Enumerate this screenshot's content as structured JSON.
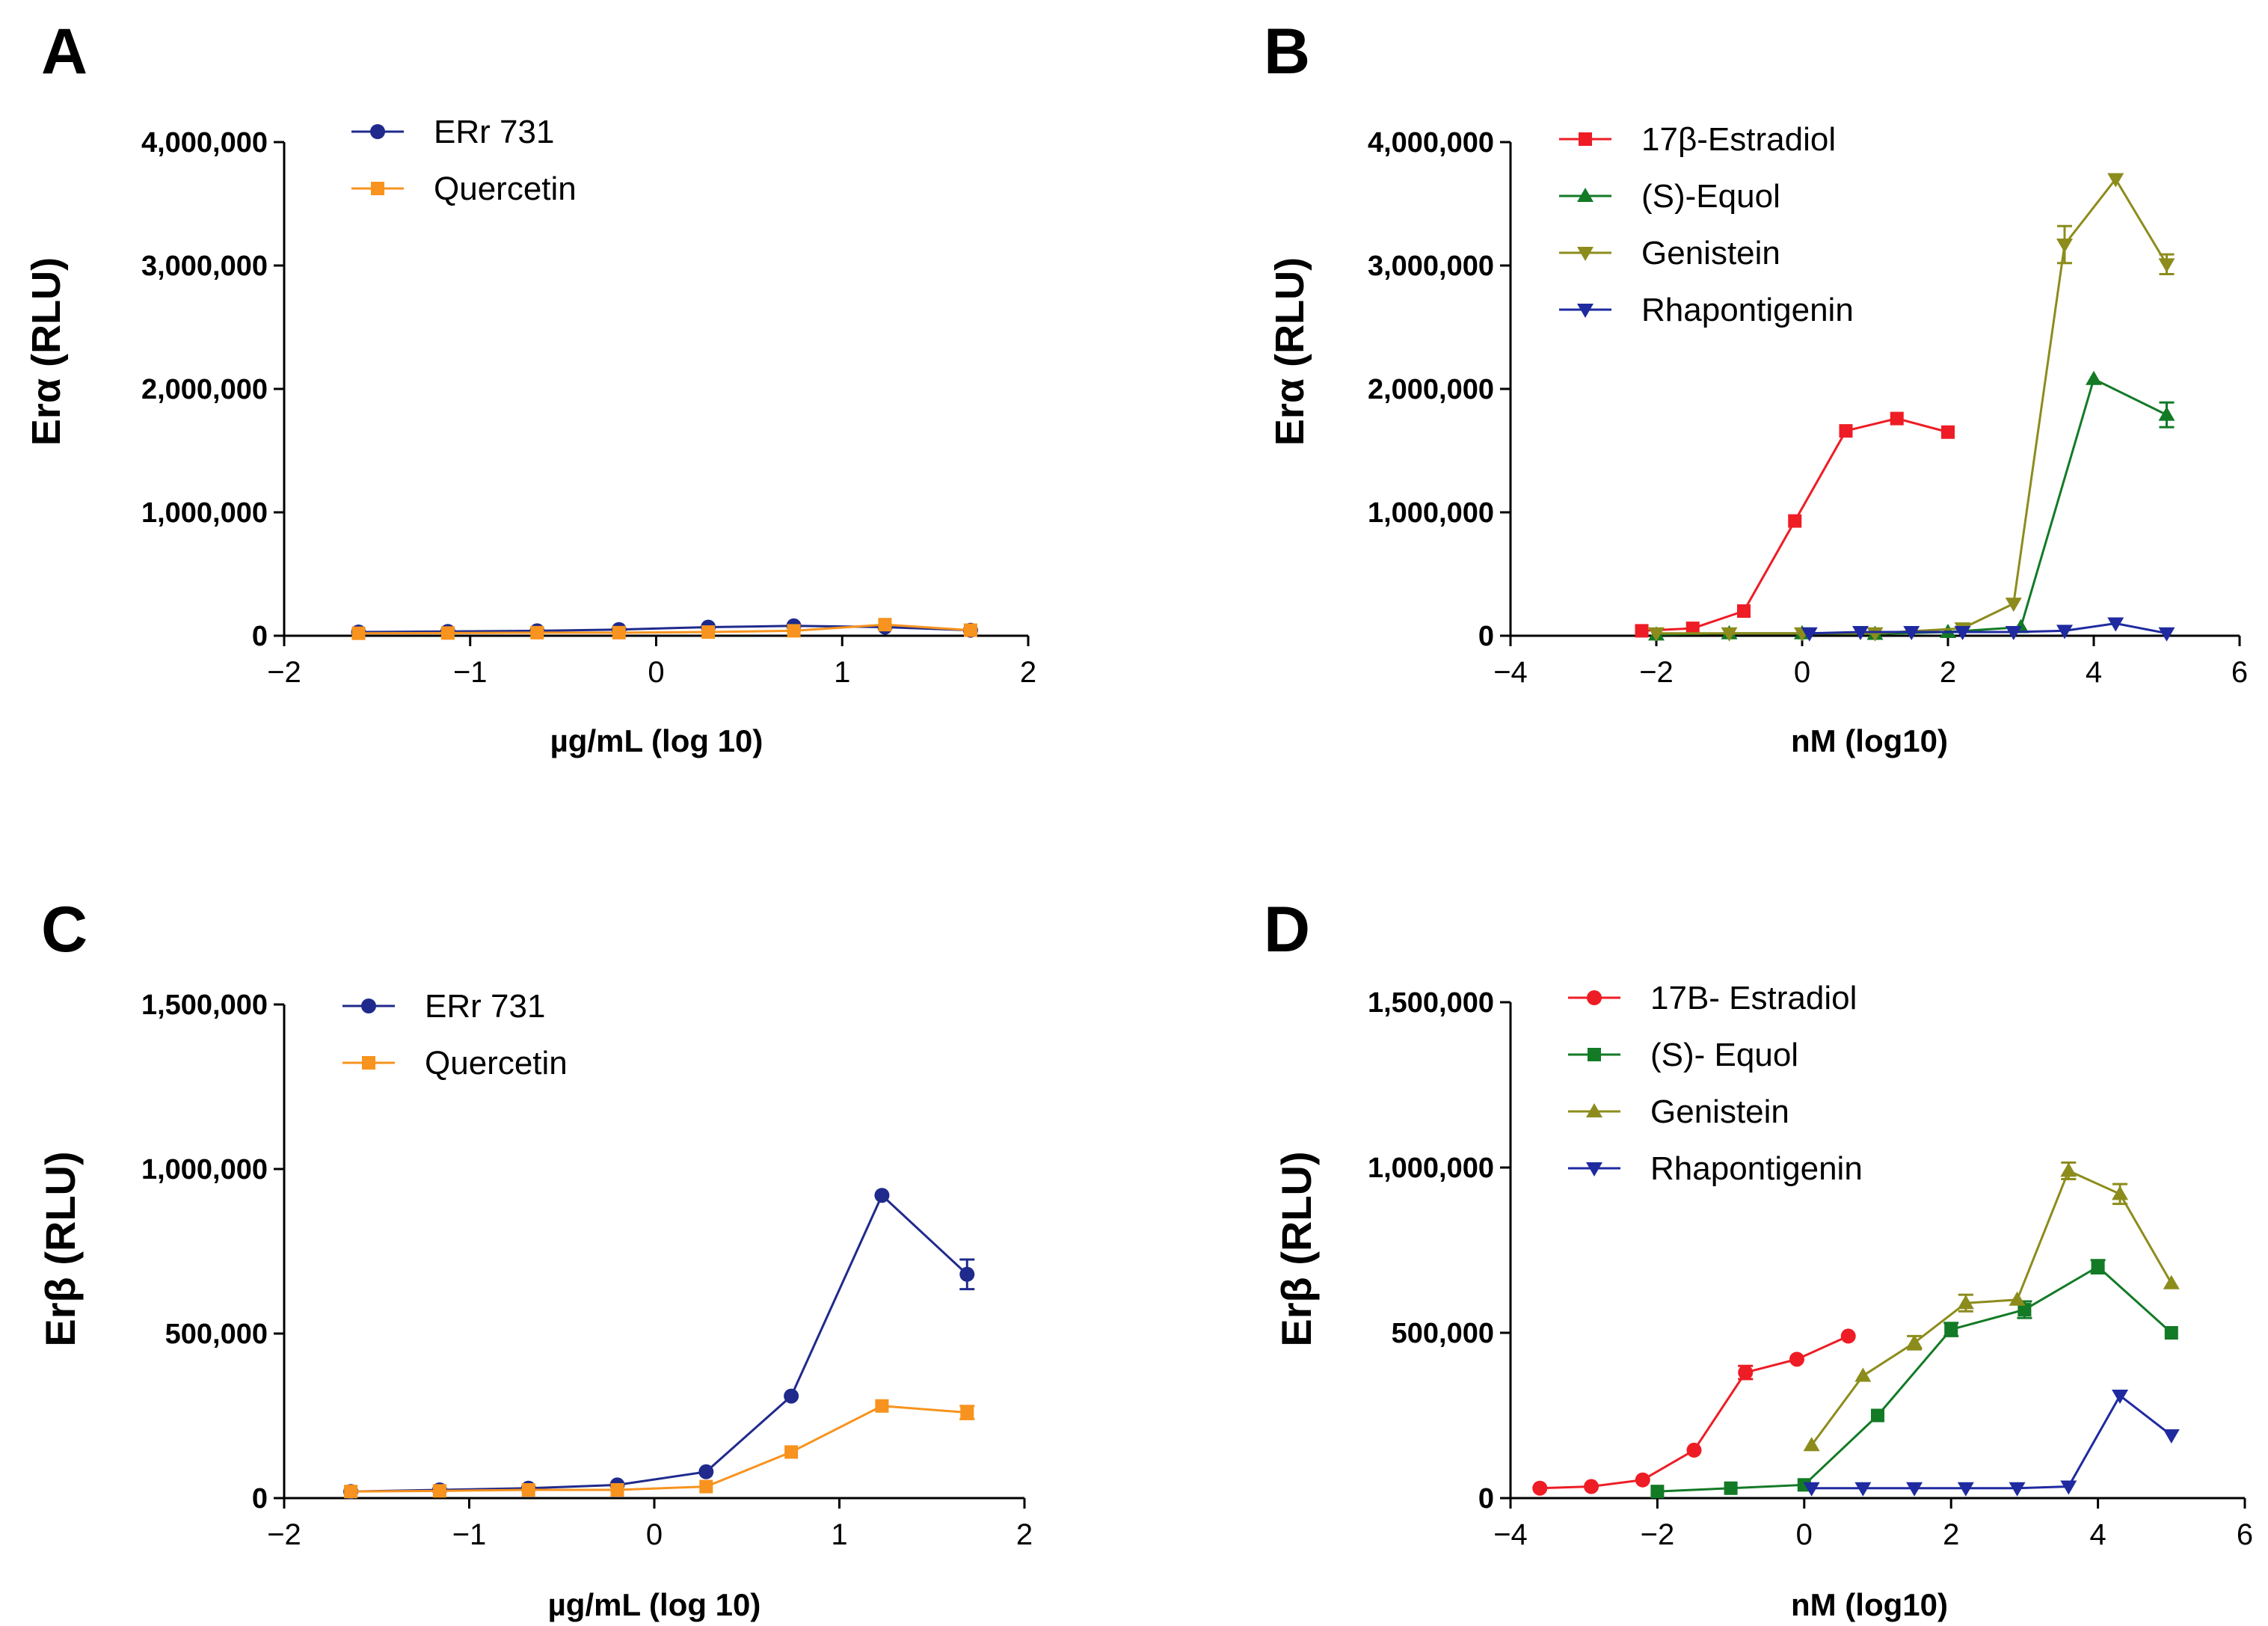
{
  "colors": {
    "erra": "#1f2a8c",
    "quercetin": "#f7931e",
    "estradiol": "#ee1c24",
    "equol": "#137a26",
    "genistein": "#8c8c1c",
    "rhapontigenin": "#1f2aa0"
  },
  "chart_data": [
    {
      "panel": "A",
      "type": "line",
      "xlabel": "µg/mL (log 10)",
      "ylabel": "Erα (RLU)",
      "xlim": [
        -2,
        2
      ],
      "ylim": [
        0,
        4000000
      ],
      "xticks": [
        -2,
        -1,
        0,
        1,
        2
      ],
      "xtick_labels": [
        "−2",
        "−1",
        "0",
        "1",
        "2"
      ],
      "yticks": [
        0,
        1000000,
        2000000,
        3000000,
        4000000
      ],
      "ytick_labels": [
        "0",
        "1,000,000",
        "2,000,000",
        "3,000,000",
        "4,000,000"
      ],
      "series": [
        {
          "name": "ERr 731",
          "color_key": "erra",
          "marker": "circle",
          "x": [
            -1.6,
            -1.12,
            -0.64,
            -0.2,
            0.28,
            0.74,
            1.23,
            1.69
          ],
          "y": [
            30000,
            35000,
            40000,
            50000,
            70000,
            80000,
            70000,
            45000
          ],
          "err": [
            0,
            0,
            0,
            0,
            0,
            0,
            0,
            0
          ]
        },
        {
          "name": "Quercetin",
          "color_key": "quercetin",
          "marker": "square",
          "x": [
            -1.6,
            -1.12,
            -0.64,
            -0.2,
            0.28,
            0.74,
            1.23,
            1.69
          ],
          "y": [
            20000,
            22000,
            25000,
            25000,
            30000,
            40000,
            90000,
            45000
          ],
          "err": [
            0,
            0,
            0,
            0,
            0,
            0,
            0,
            0
          ]
        }
      ]
    },
    {
      "panel": "B",
      "type": "line",
      "xlabel": "nM (log10)",
      "ylabel": "Erα (RLU)",
      "xlim": [
        -4,
        6
      ],
      "ylim": [
        0,
        4000000
      ],
      "xticks": [
        -4,
        -2,
        0,
        2,
        4,
        6
      ],
      "xtick_labels": [
        "−4",
        "−2",
        "0",
        "2",
        "4",
        "6"
      ],
      "yticks": [
        0,
        1000000,
        2000000,
        3000000,
        4000000
      ],
      "ytick_labels": [
        "0",
        "1,000,000",
        "2,000,000",
        "3,000,000",
        "4,000,000"
      ],
      "series": [
        {
          "name": "17β-Estradiol",
          "color_key": "estradiol",
          "marker": "square",
          "x": [
            -2.2,
            -1.5,
            -0.8,
            -0.1,
            0.6,
            1.3,
            2.0
          ],
          "y": [
            40000,
            60000,
            200000,
            930000,
            1660000,
            1760000,
            1650000
          ],
          "err": [
            0,
            0,
            0,
            0,
            0,
            0,
            0
          ]
        },
        {
          "name": "(S)-Equol",
          "color_key": "equol",
          "marker": "triangle-up",
          "x": [
            -2.0,
            -1.0,
            0.0,
            1.0,
            2.0,
            3.0,
            4.0,
            5.0
          ],
          "y": [
            10000,
            20000,
            20000,
            15000,
            30000,
            70000,
            2080000,
            1790000
          ],
          "err": [
            0,
            0,
            0,
            0,
            0,
            0,
            0,
            100000
          ]
        },
        {
          "name": "Genistein",
          "color_key": "genistein",
          "marker": "triangle-down",
          "x": [
            -2.0,
            -1.0,
            0.0,
            1.0,
            2.2,
            2.9,
            3.6,
            4.3,
            5.0
          ],
          "y": [
            20000,
            20000,
            20000,
            20000,
            60000,
            260000,
            3170000,
            3700000,
            3010000
          ],
          "err": [
            0,
            0,
            0,
            0,
            0,
            0,
            150000,
            0,
            80000
          ]
        },
        {
          "name": "Rhapontigenin",
          "color_key": "rhapontigenin",
          "marker": "triangle-down",
          "x": [
            0.1,
            0.8,
            1.5,
            2.2,
            2.9,
            3.6,
            4.3,
            5.0
          ],
          "y": [
            20000,
            30000,
            30000,
            30000,
            30000,
            40000,
            100000,
            20000
          ],
          "err": [
            0,
            0,
            0,
            0,
            0,
            0,
            0,
            0
          ]
        }
      ]
    },
    {
      "panel": "C",
      "type": "line",
      "xlabel": "µg/mL (log 10)",
      "ylabel": "Erβ (RLU)",
      "xlim": [
        -2,
        2
      ],
      "ylim": [
        0,
        1500000
      ],
      "xticks": [
        -2,
        -1,
        0,
        1,
        2
      ],
      "xtick_labels": [
        "−2",
        "−1",
        "0",
        "1",
        "2"
      ],
      "yticks": [
        0,
        500000,
        1000000,
        1500000
      ],
      "ytick_labels": [
        "0",
        "500,000",
        "1,000,000",
        "1,500,000"
      ],
      "series": [
        {
          "name": "ERr 731",
          "color_key": "erra",
          "marker": "circle",
          "x": [
            -1.64,
            -1.16,
            -0.68,
            -0.2,
            0.28,
            0.74,
            1.23,
            1.69
          ],
          "y": [
            20000,
            25000,
            30000,
            40000,
            80000,
            310000,
            920000,
            680000
          ],
          "err": [
            0,
            0,
            0,
            0,
            0,
            0,
            0,
            45000
          ]
        },
        {
          "name": "Quercetin",
          "color_key": "quercetin",
          "marker": "square",
          "x": [
            -1.64,
            -1.16,
            -0.68,
            -0.2,
            0.28,
            0.74,
            1.23,
            1.69
          ],
          "y": [
            20000,
            22000,
            25000,
            25000,
            35000,
            140000,
            280000,
            260000
          ],
          "err": [
            0,
            0,
            0,
            0,
            0,
            0,
            0,
            20000
          ]
        }
      ]
    },
    {
      "panel": "D",
      "type": "line",
      "xlabel": "nM (log10)",
      "ylabel": "Erβ (RLU)",
      "xlim": [
        -4,
        6
      ],
      "ylim": [
        0,
        1500000
      ],
      "xticks": [
        -4,
        -2,
        0,
        2,
        4,
        6
      ],
      "xtick_labels": [
        "−4",
        "−2",
        "0",
        "2",
        "4",
        "6"
      ],
      "yticks": [
        0,
        500000,
        1000000,
        1500000
      ],
      "ytick_labels": [
        "0",
        "500,000",
        "1,000,000",
        "1,500,000"
      ],
      "series": [
        {
          "name": "17B- Estradiol",
          "color_key": "estradiol",
          "marker": "circle",
          "x": [
            -3.6,
            -2.9,
            -2.2,
            -1.5,
            -0.8,
            -0.1,
            0.6
          ],
          "y": [
            30000,
            35000,
            55000,
            145000,
            380000,
            420000,
            490000
          ],
          "err": [
            0,
            0,
            0,
            0,
            20000,
            0,
            0
          ]
        },
        {
          "name": "(S)- Equol",
          "color_key": "equol",
          "marker": "square",
          "x": [
            -2.0,
            -1.0,
            0.0,
            1.0,
            2.0,
            3.0,
            4.0,
            5.0
          ],
          "y": [
            20000,
            30000,
            40000,
            250000,
            510000,
            570000,
            700000,
            500000
          ],
          "err": [
            0,
            0,
            0,
            0,
            20000,
            25000,
            20000,
            0
          ]
        },
        {
          "name": "Genistein",
          "color_key": "genistein",
          "marker": "triangle-up",
          "x": [
            0.1,
            0.8,
            1.5,
            2.2,
            2.9,
            3.6,
            4.3,
            5.0
          ],
          "y": [
            160000,
            370000,
            470000,
            590000,
            600000,
            990000,
            920000,
            650000
          ],
          "err": [
            0,
            0,
            20000,
            25000,
            0,
            25000,
            30000,
            0
          ]
        },
        {
          "name": "Rhapontigenin",
          "color_key": "rhapontigenin",
          "marker": "triangle-down",
          "x": [
            0.1,
            0.8,
            1.5,
            2.2,
            2.9,
            3.6,
            4.3,
            5.0
          ],
          "y": [
            30000,
            30000,
            30000,
            30000,
            30000,
            35000,
            310000,
            190000
          ],
          "err": [
            0,
            0,
            0,
            0,
            0,
            0,
            0,
            0
          ]
        }
      ]
    }
  ]
}
